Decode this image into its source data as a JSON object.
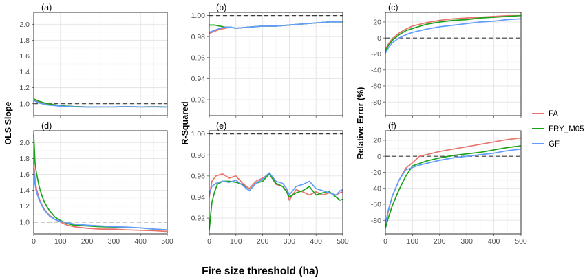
{
  "figure": {
    "x_title": "Fire size threshold (ha)",
    "legend": [
      {
        "name": "FA",
        "color": "#e8736c"
      },
      {
        "name": "FRY_M05",
        "color": "#1aa31a"
      },
      {
        "name": "GF",
        "color": "#619cff"
      }
    ]
  },
  "chart_data": [
    {
      "type": "line",
      "panel": "(a)",
      "ylabel": "OLS Slope",
      "xlim": [
        0,
        500
      ],
      "ylim": [
        0.85,
        2.15
      ],
      "xticks": [
        0,
        100,
        200,
        300,
        400,
        500
      ],
      "yticks": [
        1.0,
        1.2,
        1.4,
        1.6,
        1.8,
        2.0
      ],
      "ytick_labels": [
        "1.0",
        "1.2",
        "1.4",
        "1.6",
        "1.8",
        "2.0"
      ],
      "show_xtick_labels": false,
      "reference_line": 1.0,
      "series": [
        {
          "name": "FA",
          "x": [
            0,
            20,
            50,
            100,
            150,
            200,
            250,
            300,
            350,
            400,
            450,
            500
          ],
          "y": [
            1.05,
            1.02,
            0.99,
            0.97,
            0.965,
            0.96,
            0.96,
            0.96,
            0.963,
            0.96,
            0.962,
            0.96
          ]
        },
        {
          "name": "FRY_M05",
          "x": [
            0,
            20,
            50,
            100,
            150,
            200,
            250,
            300,
            350,
            400,
            450,
            500
          ],
          "y": [
            1.06,
            1.03,
            1.0,
            0.975,
            0.965,
            0.96,
            0.96,
            0.96,
            0.963,
            0.96,
            0.962,
            0.96
          ]
        },
        {
          "name": "GF",
          "x": [
            0,
            20,
            50,
            100,
            150,
            200,
            250,
            300,
            350,
            400,
            450,
            500
          ],
          "y": [
            1.04,
            1.01,
            0.985,
            0.97,
            0.962,
            0.958,
            0.96,
            0.96,
            0.962,
            0.96,
            0.96,
            0.958
          ]
        }
      ]
    },
    {
      "type": "line",
      "panel": "(b)",
      "ylabel": "R-Squared",
      "xlim": [
        0,
        500
      ],
      "ylim": [
        0.905,
        1.003
      ],
      "xticks": [
        0,
        100,
        200,
        300,
        400,
        500
      ],
      "yticks": [
        0.92,
        0.94,
        0.96,
        0.98,
        1.0
      ],
      "ytick_labels": [
        "0.92",
        "0.94",
        "0.96",
        "0.98",
        "1.00"
      ],
      "show_xtick_labels": false,
      "reference_line": 1.0,
      "series": [
        {
          "name": "FA",
          "x": [
            0,
            20,
            40,
            60,
            80,
            100,
            150,
            200,
            250,
            300,
            350,
            400,
            450,
            500
          ],
          "y": [
            0.983,
            0.985,
            0.987,
            0.988,
            0.989,
            0.988,
            0.989,
            0.99,
            0.99,
            0.991,
            0.992,
            0.993,
            0.994,
            0.994
          ]
        },
        {
          "name": "FRY_M05",
          "x": [
            0,
            20,
            40,
            60,
            80,
            100,
            150,
            200,
            250,
            300,
            350,
            400,
            450,
            500
          ],
          "y": [
            0.991,
            0.991,
            0.99,
            0.989,
            0.989,
            0.988,
            0.989,
            0.99,
            0.99,
            0.991,
            0.992,
            0.993,
            0.994,
            0.994
          ]
        },
        {
          "name": "GF",
          "x": [
            0,
            20,
            40,
            60,
            80,
            100,
            150,
            200,
            250,
            300,
            350,
            400,
            450,
            500
          ],
          "y": [
            0.984,
            0.986,
            0.988,
            0.989,
            0.989,
            0.988,
            0.989,
            0.99,
            0.99,
            0.991,
            0.992,
            0.993,
            0.994,
            0.994
          ]
        }
      ]
    },
    {
      "type": "line",
      "panel": "(c)",
      "ylabel": "Relative Error (%)",
      "xlim": [
        0,
        500
      ],
      "ylim": [
        -97,
        32
      ],
      "xticks": [
        0,
        100,
        200,
        300,
        400,
        500
      ],
      "yticks": [
        -80,
        -60,
        -40,
        -20,
        0,
        20
      ],
      "ytick_labels": [
        "-80",
        "-60",
        "-40",
        "-20",
        "0",
        "20"
      ],
      "show_xtick_labels": false,
      "reference_line": 0,
      "series": [
        {
          "name": "FA",
          "x": [
            0,
            10,
            25,
            50,
            75,
            100,
            150,
            200,
            250,
            300,
            350,
            400,
            450,
            500
          ],
          "y": [
            -15,
            -8,
            -1,
            6,
            11,
            15,
            19,
            22,
            24,
            25,
            26,
            27,
            28,
            28
          ]
        },
        {
          "name": "FRY_M05",
          "x": [
            0,
            10,
            25,
            50,
            75,
            100,
            150,
            200,
            250,
            300,
            350,
            400,
            450,
            500
          ],
          "y": [
            -17,
            -10,
            -3,
            4,
            9,
            12,
            17,
            20,
            22,
            23,
            25,
            26,
            27,
            28
          ]
        },
        {
          "name": "GF",
          "x": [
            0,
            10,
            25,
            50,
            75,
            100,
            150,
            200,
            250,
            300,
            350,
            400,
            450,
            500
          ],
          "y": [
            -19,
            -13,
            -6,
            0,
            4,
            7,
            11,
            14,
            16,
            18,
            20,
            21,
            23,
            24
          ]
        }
      ]
    },
    {
      "type": "line",
      "panel": "(d)",
      "ylabel": "OLS Slope",
      "xlim": [
        0,
        500
      ],
      "ylim": [
        0.85,
        2.15
      ],
      "xticks": [
        0,
        100,
        200,
        300,
        400,
        500
      ],
      "yticks": [
        1.0,
        1.2,
        1.4,
        1.6,
        1.8,
        2.0
      ],
      "ytick_labels": [
        "1.0",
        "1.2",
        "1.4",
        "1.6",
        "1.8",
        "2.0"
      ],
      "show_xtick_labels": true,
      "reference_line": 1.0,
      "series": [
        {
          "name": "FA",
          "x": [
            0,
            5,
            10,
            20,
            30,
            40,
            50,
            60,
            80,
            100,
            125,
            150,
            200,
            250,
            300,
            350,
            400,
            450,
            500
          ],
          "y": [
            1.75,
            1.55,
            1.42,
            1.3,
            1.22,
            1.16,
            1.12,
            1.08,
            1.03,
            1.0,
            0.96,
            0.94,
            0.92,
            0.91,
            0.91,
            0.9,
            0.895,
            0.89,
            0.88
          ]
        },
        {
          "name": "FRY_M05",
          "x": [
            0,
            5,
            10,
            20,
            30,
            40,
            50,
            60,
            80,
            100,
            125,
            150,
            200,
            250,
            300,
            350,
            400,
            450,
            500
          ],
          "y": [
            2.1,
            1.75,
            1.62,
            1.45,
            1.34,
            1.25,
            1.19,
            1.14,
            1.06,
            1.02,
            0.98,
            0.96,
            0.95,
            0.94,
            0.935,
            0.93,
            0.925,
            0.91,
            0.9
          ]
        },
        {
          "name": "GF",
          "x": [
            0,
            5,
            10,
            20,
            30,
            40,
            50,
            60,
            80,
            100,
            125,
            150,
            200,
            250,
            300,
            350,
            400,
            450,
            500
          ],
          "y": [
            1.68,
            1.48,
            1.38,
            1.28,
            1.21,
            1.15,
            1.11,
            1.07,
            1.03,
            1.01,
            0.99,
            0.975,
            0.96,
            0.95,
            0.94,
            0.935,
            0.925,
            0.91,
            0.9
          ]
        }
      ]
    },
    {
      "type": "line",
      "panel": "(e)",
      "ylabel": "R-Squared",
      "xlim": [
        0,
        500
      ],
      "ylim": [
        0.905,
        1.003
      ],
      "xticks": [
        0,
        100,
        200,
        300,
        400,
        500
      ],
      "yticks": [
        0.92,
        0.94,
        0.96,
        0.98,
        1.0
      ],
      "ytick_labels": [
        "0.92",
        "0.94",
        "0.96",
        "0.98",
        "1.00"
      ],
      "show_xtick_labels": true,
      "reference_line": 1.0,
      "series": [
        {
          "name": "FA",
          "x": [
            0,
            10,
            25,
            50,
            75,
            100,
            125,
            150,
            175,
            200,
            225,
            250,
            275,
            290,
            300,
            325,
            350,
            375,
            400,
            425,
            450,
            475,
            490,
            500
          ],
          "y": [
            0.94,
            0.955,
            0.96,
            0.962,
            0.958,
            0.96,
            0.953,
            0.948,
            0.955,
            0.958,
            0.962,
            0.952,
            0.95,
            0.946,
            0.937,
            0.947,
            0.945,
            0.942,
            0.945,
            0.942,
            0.944,
            0.942,
            0.944,
            0.945
          ]
        },
        {
          "name": "FRY_M05",
          "x": [
            0,
            5,
            10,
            20,
            30,
            50,
            75,
            100,
            125,
            150,
            175,
            200,
            225,
            250,
            275,
            290,
            300,
            325,
            350,
            375,
            400,
            425,
            450,
            475,
            490,
            500
          ],
          "y": [
            0.908,
            0.922,
            0.935,
            0.945,
            0.952,
            0.955,
            0.955,
            0.954,
            0.952,
            0.946,
            0.953,
            0.955,
            0.962,
            0.953,
            0.95,
            0.945,
            0.94,
            0.944,
            0.946,
            0.95,
            0.942,
            0.944,
            0.945,
            0.94,
            0.937,
            0.938
          ]
        },
        {
          "name": "GF",
          "x": [
            0,
            10,
            25,
            50,
            75,
            100,
            125,
            150,
            175,
            200,
            225,
            250,
            275,
            290,
            300,
            325,
            350,
            375,
            400,
            425,
            450,
            475,
            490,
            500
          ],
          "y": [
            0.943,
            0.95,
            0.953,
            0.955,
            0.954,
            0.956,
            0.951,
            0.946,
            0.953,
            0.957,
            0.963,
            0.955,
            0.953,
            0.948,
            0.942,
            0.95,
            0.952,
            0.955,
            0.948,
            0.946,
            0.944,
            0.942,
            0.946,
            0.947
          ]
        }
      ]
    },
    {
      "type": "line",
      "panel": "(f)",
      "ylabel": "Relative Error (%)",
      "xlim": [
        0,
        500
      ],
      "ylim": [
        -97,
        32
      ],
      "xticks": [
        0,
        100,
        200,
        300,
        400,
        500
      ],
      "yticks": [
        -80,
        -60,
        -40,
        -20,
        0,
        20
      ],
      "ytick_labels": [
        "-80",
        "-60",
        "-40",
        "-20",
        "0",
        "20"
      ],
      "show_xtick_labels": true,
      "reference_line": 0,
      "series": [
        {
          "name": "FA",
          "x": [
            0,
            10,
            25,
            50,
            75,
            100,
            125,
            150,
            175,
            200,
            250,
            300,
            350,
            400,
            450,
            500
          ],
          "y": [
            -88,
            -70,
            -50,
            -30,
            -15,
            -8,
            0,
            2,
            4,
            6,
            9,
            12,
            15,
            18,
            21,
            23
          ]
        },
        {
          "name": "FRY_M05",
          "x": [
            0,
            10,
            25,
            50,
            75,
            100,
            125,
            150,
            200,
            250,
            300,
            350,
            400,
            450,
            500
          ],
          "y": [
            -90,
            -78,
            -62,
            -42,
            -25,
            -12,
            -9,
            -6,
            -2,
            1,
            3,
            5,
            8,
            11,
            13
          ]
        },
        {
          "name": "GF",
          "x": [
            0,
            10,
            25,
            50,
            75,
            100,
            125,
            150,
            200,
            250,
            300,
            350,
            400,
            450,
            500
          ],
          "y": [
            -85,
            -68,
            -50,
            -30,
            -17,
            -14,
            -11,
            -9,
            -5,
            -2,
            0,
            2,
            4,
            7,
            9
          ]
        }
      ]
    }
  ]
}
